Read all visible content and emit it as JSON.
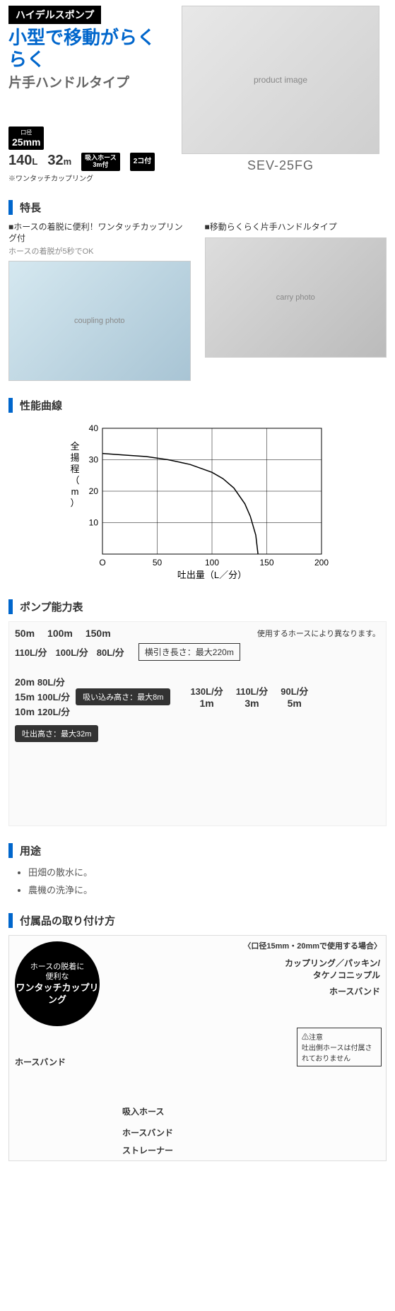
{
  "header": {
    "category": "ハイデルスポンプ",
    "headline": "小型で移動がらくらく",
    "subtitle": "片手ハンドルタイプ",
    "model": "SEV-25FG"
  },
  "spec_icons": {
    "caliber_label": "口径",
    "caliber_value": "25mm",
    "hose_badge": "吸入ホース\n3m付",
    "pair_badge": "2コ付",
    "flow_value": "140",
    "flow_unit": "L",
    "head_value": "32",
    "head_unit": "m",
    "coupling_note": "※ワンタッチカップリング"
  },
  "sections": {
    "features": "特長",
    "curve": "性能曲線",
    "capacity": "ポンプ能力表",
    "usage": "用途",
    "accessory": "付属品の取り付け方"
  },
  "features": [
    {
      "head": "■ホースの着脱に便利！ワンタッチカップリング付",
      "note": "ホースの着脱が5秒でOK",
      "alt": "coupling photo"
    },
    {
      "head": "■移動らくらく片手ハンドルタイプ",
      "note": "",
      "alt": "carry photo"
    }
  ],
  "performance_curve": {
    "x_label": "吐出量（L／分）",
    "y_label": "全揚程（m）",
    "x_ticks": [
      0,
      50,
      100,
      150,
      200
    ],
    "y_ticks": [
      10,
      20,
      30,
      40
    ],
    "xlim": [
      0,
      200
    ],
    "ylim": [
      0,
      40
    ],
    "line_color": "#000000",
    "grid_color": "#000000",
    "background_color": "#ffffff",
    "axis_fontsize": 12,
    "label_fontsize": 13,
    "line_width": 1.5,
    "data_points": [
      {
        "x": 0,
        "y": 32
      },
      {
        "x": 20,
        "y": 31.5
      },
      {
        "x": 40,
        "y": 31
      },
      {
        "x": 60,
        "y": 30
      },
      {
        "x": 80,
        "y": 28.5
      },
      {
        "x": 100,
        "y": 26
      },
      {
        "x": 110,
        "y": 24
      },
      {
        "x": 120,
        "y": 21
      },
      {
        "x": 130,
        "y": 16
      },
      {
        "x": 135,
        "y": 12
      },
      {
        "x": 140,
        "y": 6
      },
      {
        "x": 142,
        "y": 0
      }
    ]
  },
  "capacity": {
    "hose_note": "使用するホースにより異なります。",
    "horizontal_box": "横引き長さ：最大220m",
    "horizontal_points": [
      {
        "dist": "50m",
        "flow": "110L/分"
      },
      {
        "dist": "100m",
        "flow": "100L/分"
      },
      {
        "dist": "150m",
        "flow": "80L/分"
      }
    ],
    "suction_box": "吸い込み高さ：最大8m",
    "discharge_box": "吐出高さ：最大32m",
    "vertical_points": [
      {
        "head": "20m",
        "flow": "80L/分"
      },
      {
        "head": "15m",
        "flow": "100L/分"
      },
      {
        "head": "10m",
        "flow": "120L/分"
      }
    ],
    "step_points": [
      {
        "depth": "1m",
        "flow": "130L/分"
      },
      {
        "depth": "3m",
        "flow": "110L/分"
      },
      {
        "depth": "5m",
        "flow": "90L/分"
      }
    ]
  },
  "usage_items": [
    "田畑の散水に。",
    "農機の洗浄に。"
  ],
  "accessory": {
    "bubble_small": "ホースの脱着に\n便利な",
    "bubble_big": "ワンタッチカップリング",
    "top_note": "〈口径15mm・20mmで使用する場合〉",
    "labels": {
      "coupling": "カップリング／パッキン/\nタケノコニップル",
      "hoseband_top": "ホースバンド",
      "hoseband_left": "ホースバンド",
      "suction_hose": "吸入ホース",
      "hoseband_bottom": "ホースバンド",
      "strainer": "ストレーナー"
    },
    "caution_head": "⚠注意",
    "caution_body": "吐出側ホースは付属されておりません"
  }
}
